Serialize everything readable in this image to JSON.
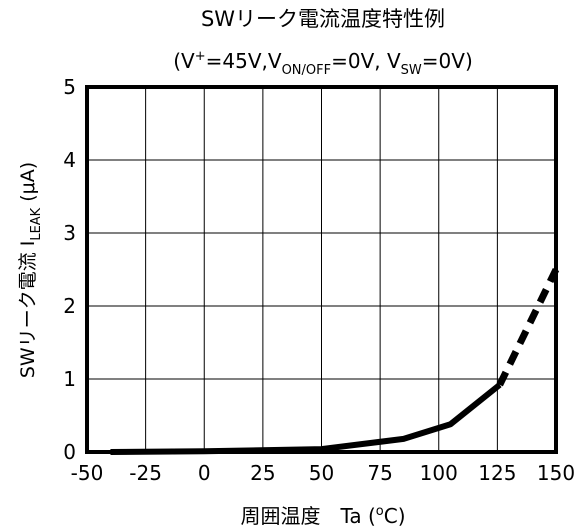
{
  "chart_data": {
    "type": "line",
    "title": "SWリーク電流温度特性例",
    "subtitle": {
      "p1": "(V",
      "sup": "+",
      "p2": "=45V,V",
      "sub1": "ON/OFF",
      "p3": "=0V, V",
      "sub2": "SW",
      "p4": "=0V)"
    },
    "xlabel": {
      "main": "周囲温度　Ta (",
      "sup": "o",
      "end": "C)"
    },
    "ylabel": {
      "main": "SWリーク電流  I",
      "sub": "LEAK",
      "end": "  (μA)"
    },
    "xlim": [
      -50,
      150
    ],
    "ylim": [
      0,
      5
    ],
    "xticks": [
      "-50",
      "-25",
      "0",
      "25",
      "50",
      "75",
      "100",
      "125",
      "150"
    ],
    "yticks": [
      "0",
      "1",
      "2",
      "3",
      "4",
      "5"
    ],
    "grid": true,
    "series": [
      {
        "style": "solid",
        "x": [
          -40,
          0,
          50,
          85,
          105,
          126
        ],
        "y": [
          0.0,
          0.01,
          0.04,
          0.18,
          0.38,
          0.92
        ]
      },
      {
        "style": "dashed",
        "x": [
          126,
          150
        ],
        "y": [
          0.92,
          2.5
        ]
      }
    ]
  }
}
